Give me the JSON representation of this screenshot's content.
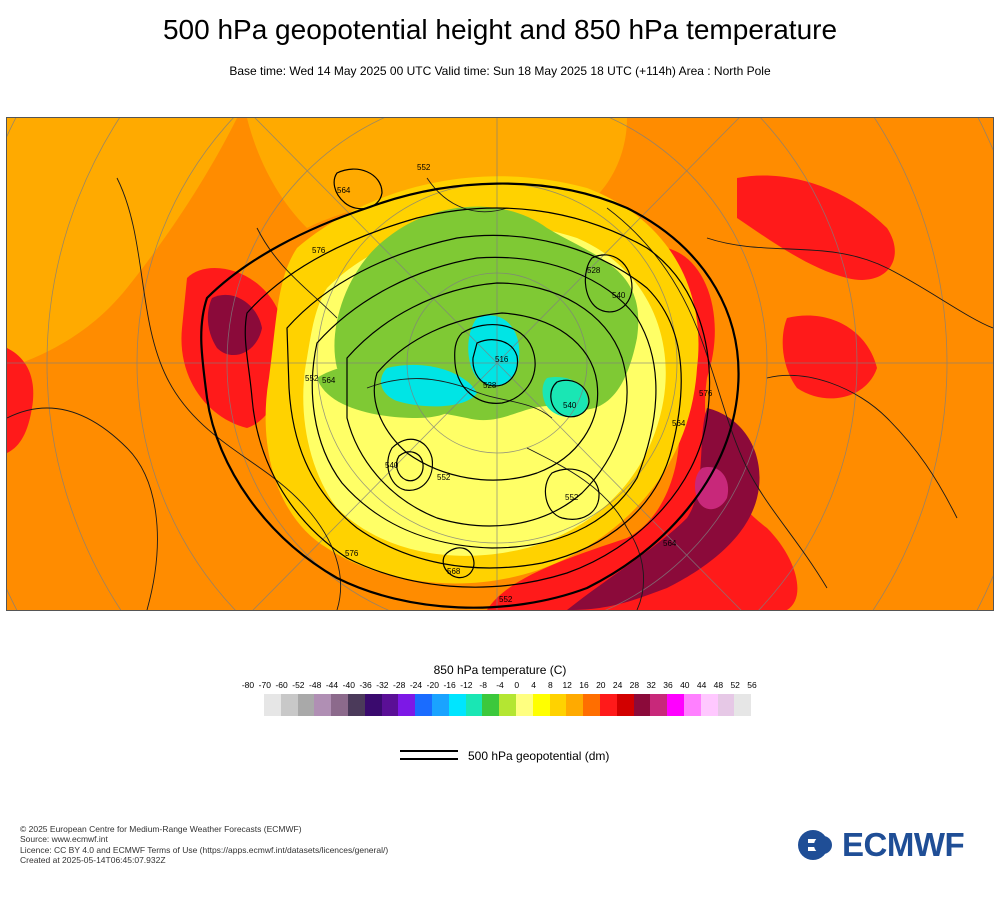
{
  "header": {
    "title": "500 hPa geopotential height and 850 hPa temperature",
    "subtitle": "Base time: Wed 14 May 2025 00 UTC Valid time: Sun 18 May 2025 18 UTC (+114h) Area : North Pole"
  },
  "map": {
    "area": "North Pole",
    "projection": "polar stereographic",
    "contour_labels": [
      "576",
      "564",
      "552",
      "540",
      "528",
      "552",
      "564",
      "576",
      "540",
      "552",
      "528",
      "516",
      "540",
      "552",
      "564",
      "576",
      "568",
      "552",
      "564"
    ],
    "colors": {
      "background_warm": "#ff8c00",
      "hot": "#ff1a1a",
      "very_hot": "#8b0a3a",
      "mild": "#ffd200",
      "cool": "#ffff66",
      "cold": "#7fc934",
      "very_cold": "#00e5e5",
      "contour": "#000000",
      "coastline": "#1a1a1a",
      "graticule": "#7f7f7f"
    }
  },
  "legend": {
    "title": "850 hPa temperature (C)",
    "ticks": [
      "-80",
      "-70",
      "-60",
      "-52",
      "-48",
      "-44",
      "-40",
      "-36",
      "-32",
      "-28",
      "-24",
      "-20",
      "-16",
      "-12",
      "-8",
      "-4",
      "0",
      "4",
      "8",
      "12",
      "16",
      "20",
      "24",
      "28",
      "32",
      "36",
      "40",
      "44",
      "48",
      "52",
      "56"
    ],
    "swatch_colors": [
      "#e6e6e6",
      "#c8c8c8",
      "#a9a9a9",
      "#b08fb4",
      "#8c6a8c",
      "#4b3a5a",
      "#3a0a6e",
      "#5a0f96",
      "#7d18e6",
      "#1a6cff",
      "#1aa3ff",
      "#00e5ff",
      "#1ae6b4",
      "#3cc83c",
      "#b4e632",
      "#ffff80",
      "#ffff00",
      "#ffd200",
      "#ffaa00",
      "#ff6e00",
      "#ff1a1a",
      "#d20000",
      "#8b0a3a",
      "#c8287a",
      "#ff00ff",
      "#ff80ff",
      "#ffc8ff",
      "#e6c8e6",
      "#e6e6e6"
    ],
    "line_label": "500 hPa geopotential (dm)"
  },
  "credits": {
    "line1": "© 2025 European Centre for Medium-Range Weather Forecasts (ECMWF)",
    "line2": "Source: www.ecmwf.int",
    "line3": "Licence: CC BY 4.0 and ECMWF Terms of Use (https://apps.ecmwf.int/datasets/licences/general/)",
    "line4": "Created at 2025-05-14T06:45:07.932Z"
  },
  "logo": {
    "text": "ECMWF",
    "color": "#1f4e96"
  }
}
